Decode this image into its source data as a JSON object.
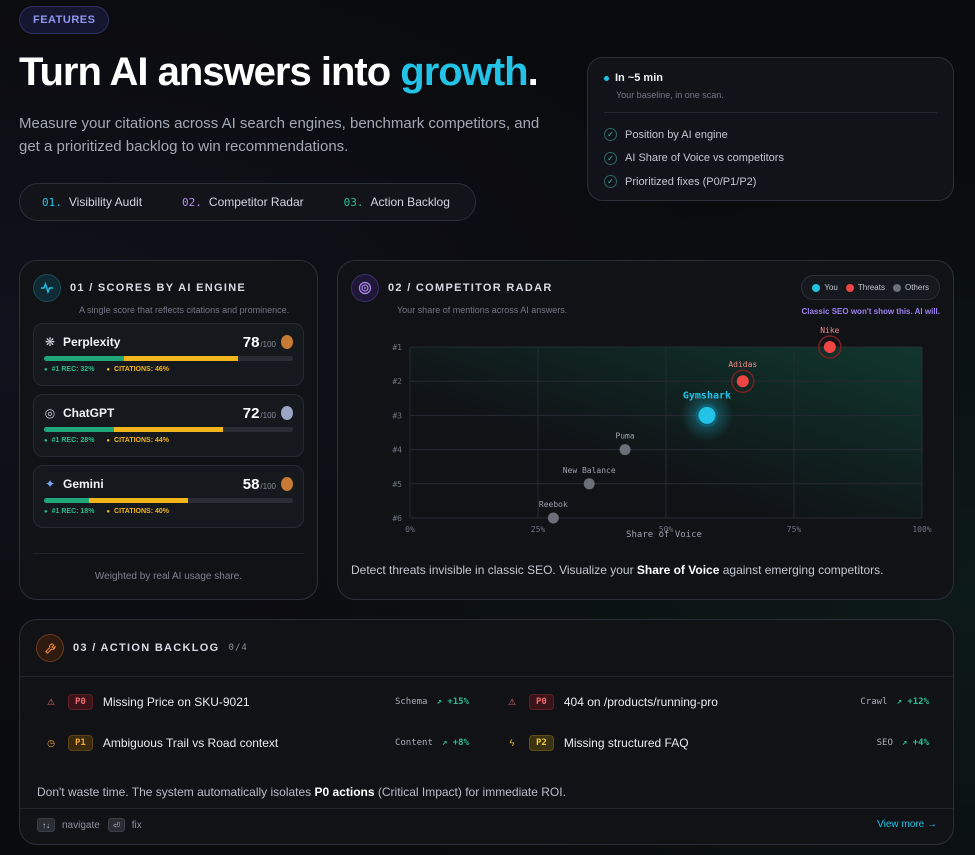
{
  "badge": "FEATURES",
  "hero": {
    "title_main": "Turn AI answers into ",
    "title_accent": "growth",
    "title_end": ".",
    "subtitle": "Measure your citations across AI search engines, benchmark competitors, and get a prioritized backlog to win recommendations."
  },
  "steps": [
    {
      "num": "01.",
      "label": "Visibility Audit",
      "color": "#22c3e6"
    },
    {
      "num": "02.",
      "label": "Competitor Radar",
      "color": "#b48cf2"
    },
    {
      "num": "03.",
      "label": "Action Backlog",
      "color": "#2cbf8c"
    }
  ],
  "summary": {
    "head": "In ~5 min",
    "sub": "Your baseline, in one scan.",
    "items": [
      "Position by AI engine",
      "AI Share of Voice vs competitors",
      "Prioritized fixes (P0/P1/P2)"
    ]
  },
  "scores": {
    "title": "01 / SCORES BY AI ENGINE",
    "desc": "A single score that reflects citations and prominence.",
    "max_label": "/100",
    "engines": [
      {
        "name": "Perplexity",
        "score": "78",
        "rec_label": "#1 REC: 32%",
        "cit_label": "CITATIONS: 46%",
        "rec": 0.32,
        "cit": 0.46,
        "medal": "bronze",
        "icon": "perplexity-icon"
      },
      {
        "name": "ChatGPT",
        "score": "72",
        "rec_label": "#1 REC: 28%",
        "cit_label": "CITATIONS: 44%",
        "rec": 0.28,
        "cit": 0.44,
        "medal": "silver",
        "icon": "chatgpt-icon"
      },
      {
        "name": "Gemini",
        "score": "58",
        "rec_label": "#1 REC: 18%",
        "cit_label": "CITATIONS: 40%",
        "rec": 0.18,
        "cit": 0.4,
        "medal": "bronze",
        "icon": "gemini-icon"
      }
    ],
    "footer": "Weighted by real AI usage share."
  },
  "radar": {
    "title": "02 / COMPETITOR RADAR",
    "desc": "Your share of mentions across AI answers.",
    "legend": {
      "you": "You",
      "threats": "Threats",
      "others": "Others"
    },
    "note": "Classic SEO won't show this. AI will.",
    "footer_pre": "Detect threats invisible in classic SEO. Visualize your ",
    "footer_bold": "Share of Voice",
    "footer_post": " against emerging competitors.",
    "colors": {
      "you": "#22c3e6",
      "threat": "#ef4444",
      "other": "#6b6f78"
    }
  },
  "chart_data": {
    "type": "scatter",
    "xlabel": "Share of Voice",
    "x_ticks": [
      "0%",
      "25%",
      "50%",
      "75%",
      "100%"
    ],
    "y_ticks": [
      "#1",
      "#2",
      "#3",
      "#4",
      "#5",
      "#6"
    ],
    "xlim": [
      0,
      100
    ],
    "ylim": [
      1,
      6
    ],
    "points": [
      {
        "name": "Nike",
        "x": 82,
        "y": 1,
        "kind": "threat"
      },
      {
        "name": "Adidas",
        "x": 65,
        "y": 2,
        "kind": "threat"
      },
      {
        "name": "Gymshark",
        "x": 58,
        "y": 3,
        "kind": "you"
      },
      {
        "name": "Puma",
        "x": 42,
        "y": 4,
        "kind": "other"
      },
      {
        "name": "New Balance",
        "x": 35,
        "y": 5,
        "kind": "other"
      },
      {
        "name": "Reebok",
        "x": 28,
        "y": 6,
        "kind": "other"
      }
    ]
  },
  "backlog": {
    "title": "03 / ACTION BACKLOG",
    "count": "0/4",
    "tasks": [
      {
        "priority": "P0",
        "title": "Missing Price on SKU-9021",
        "category": "Schema",
        "impact": "+15%"
      },
      {
        "priority": "P0",
        "title": "404 on /products/running-pro",
        "category": "Crawl",
        "impact": "+12%"
      },
      {
        "priority": "P1",
        "title": "Ambiguous Trail vs Road context",
        "category": "Content",
        "impact": "+8%"
      },
      {
        "priority": "P2",
        "title": "Missing structured FAQ",
        "category": "SEO",
        "impact": "+4%"
      }
    ],
    "msg_pre": "Don't waste time. The system automatically isolates ",
    "msg_bold": "P0 actions",
    "msg_post": " (Critical Impact) for immediate ROI.",
    "kbd_navigate": "↑↓",
    "navigate": "navigate",
    "kbd_fix": "⏎",
    "fix": "fix",
    "view_more": "View more →"
  }
}
